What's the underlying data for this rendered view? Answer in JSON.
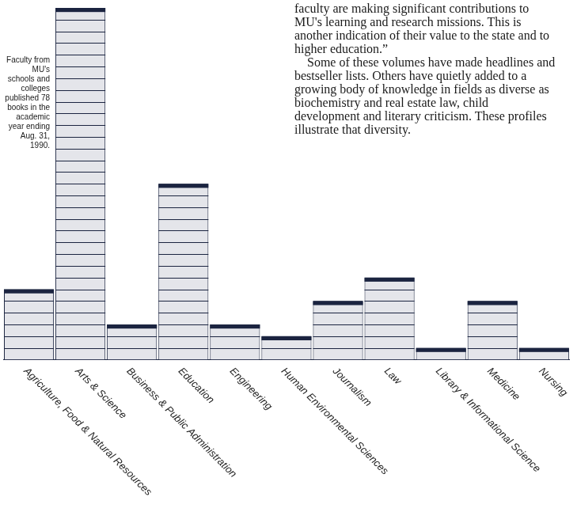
{
  "chart_data": {
    "type": "bar",
    "categories": [
      "Agriculture, Food & Natural Resources",
      "Arts & Science",
      "Business & Public Administration",
      "Education",
      "Engineering",
      "Human Environmental Sciences",
      "Journalism",
      "Law",
      "Library & Informational Science",
      "Medicine",
      "Nursing"
    ],
    "values": [
      6,
      30,
      3,
      15,
      3,
      2,
      5,
      7,
      1,
      5,
      1
    ],
    "color": "#e4e5ea",
    "ylim": [
      0,
      30
    ],
    "grid": false,
    "tick_labels": "x",
    "annotations": [
      "Faculty from MU's schools and colleges published 78 books in the academic year ending Aug. 31, 1990.",
      "faculty are making significant contributions to MU's learning and research missions. This is another indication of their value to the state and to higher education.”",
      "Some of these volumes have made headlines and bestseller lists. Others have quietly added to a growing body of knowledge in fields as diverse as biochemistry and real estate law, child development and literary criticism. These profiles illustrate that diversity."
    ]
  }
}
